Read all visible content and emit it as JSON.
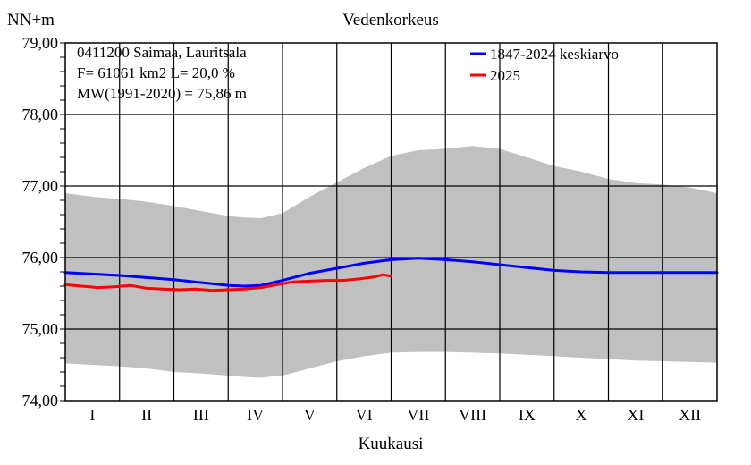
{
  "chart_data": {
    "type": "area",
    "title": "Vedenkorkeus",
    "ylabel": "NN+m",
    "xlabel": "Kuukausi",
    "ylim": [
      74.0,
      79.0
    ],
    "yticks": [
      "74,00",
      "75,00",
      "76,00",
      "77,00",
      "78,00",
      "79,00"
    ],
    "ytick_values": [
      74,
      75,
      76,
      77,
      78,
      79
    ],
    "months": [
      "I",
      "II",
      "III",
      "IV",
      "V",
      "VI",
      "VII",
      "VIII",
      "IX",
      "X",
      "XI",
      "XII"
    ],
    "info": [
      "0411200 Saimaa, Lauritsala",
      "F=  61061 km2 L=  20,0 %",
      "MW(1991-2020) = 75,86 m"
    ],
    "x_unit": "month (0 = start of January, 12 = end of December)",
    "range_band": {
      "color": "#c0c0c0",
      "x": [
        0,
        0.5,
        1,
        1.5,
        2,
        2.5,
        3,
        3.3,
        3.6,
        4,
        4.5,
        5,
        5.5,
        6,
        6.5,
        7,
        7.5,
        8,
        8.5,
        9,
        9.5,
        10,
        10.5,
        11,
        11.5,
        12
      ],
      "upper": [
        76.9,
        76.85,
        76.82,
        76.78,
        76.72,
        76.65,
        76.58,
        76.56,
        76.55,
        76.62,
        76.85,
        77.05,
        77.25,
        77.42,
        77.5,
        77.52,
        77.56,
        77.52,
        77.4,
        77.28,
        77.2,
        77.1,
        77.04,
        77.02,
        76.98,
        76.9
      ],
      "lower": [
        74.52,
        74.5,
        74.48,
        74.45,
        74.4,
        74.38,
        74.35,
        74.33,
        74.32,
        74.35,
        74.45,
        74.55,
        74.62,
        74.67,
        74.68,
        74.68,
        74.67,
        74.66,
        74.64,
        74.62,
        74.6,
        74.58,
        74.56,
        74.55,
        74.54,
        74.53
      ]
    },
    "series": [
      {
        "name": "1847-2024 keskiarvo",
        "color": "#0000ff",
        "x": [
          0,
          0.5,
          1,
          1.5,
          2,
          2.5,
          3,
          3.3,
          3.6,
          4,
          4.5,
          5,
          5.5,
          6,
          6.5,
          7,
          7.5,
          8,
          8.5,
          9,
          9.5,
          10,
          10.5,
          11,
          11.5,
          12
        ],
        "values": [
          75.79,
          75.77,
          75.75,
          75.72,
          75.69,
          75.65,
          75.61,
          75.6,
          75.61,
          75.68,
          75.78,
          75.85,
          75.92,
          75.97,
          75.99,
          75.97,
          75.94,
          75.9,
          75.86,
          75.82,
          75.8,
          75.79,
          75.79,
          75.79,
          75.79,
          75.79
        ]
      },
      {
        "name": "2025",
        "color": "#ff0000",
        "x": [
          0,
          0.3,
          0.6,
          0.9,
          1.2,
          1.5,
          1.8,
          2.1,
          2.4,
          2.7,
          3.0,
          3.3,
          3.6,
          3.9,
          4.2,
          4.5,
          4.8,
          5.1,
          5.4,
          5.7,
          5.85,
          6.0
        ],
        "values": [
          75.62,
          75.6,
          75.58,
          75.59,
          75.61,
          75.57,
          75.56,
          75.55,
          75.56,
          75.54,
          75.55,
          75.56,
          75.58,
          75.62,
          75.66,
          75.67,
          75.68,
          75.68,
          75.7,
          75.73,
          75.76,
          75.74
        ]
      }
    ]
  }
}
